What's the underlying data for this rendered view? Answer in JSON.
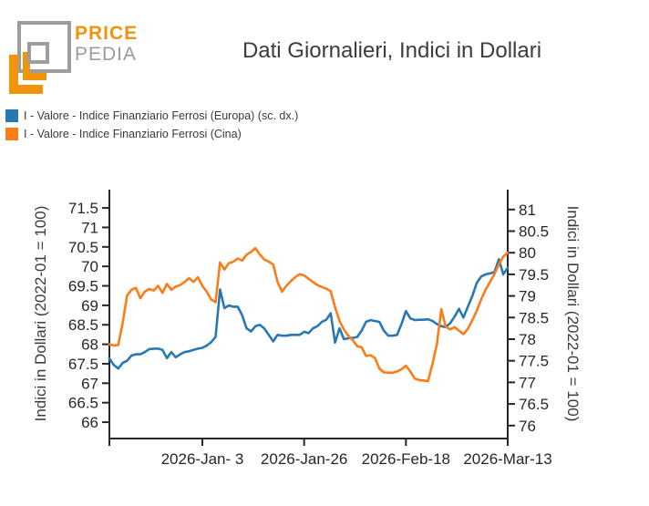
{
  "logo": {
    "brand_top": "PRICE",
    "brand_bottom": "PEDIA"
  },
  "header": {
    "title": "Dati Giornalieri, Indici in Dollari"
  },
  "legend": {
    "items": [
      {
        "label": "I - Valore - Indice Finanziario Ferrosi (Europa) (sc. dx.)",
        "color": "#2878b4"
      },
      {
        "label": "I - Valore - Indice Finanziario Ferrosi (Cina)",
        "color": "#fb7d17"
      }
    ]
  },
  "chart_data": {
    "type": "line",
    "title": "Dati Giornalieri, Indici in Dollari",
    "x_start_date": "2025-12-13",
    "x_frequency": "daily",
    "x_ticks": [
      {
        "index": 0,
        "label": ""
      },
      {
        "index": 21,
        "label": "2026-Jan- 3"
      },
      {
        "index": 44,
        "label": "2026-Jan-26"
      },
      {
        "index": 67,
        "label": "2026-Feb-18"
      },
      {
        "index": 90,
        "label": "2026-Mar-13"
      }
    ],
    "left_axis": {
      "label": "Indici in Dollari (2022-01 = 100)",
      "min": 65.58,
      "max": 71.97,
      "ticks": [
        66,
        66.5,
        67,
        67.5,
        68,
        68.5,
        69,
        69.5,
        70,
        70.5,
        71,
        71.5
      ]
    },
    "right_axis": {
      "label": "Indici in Dollari (2022-01 = 100)",
      "min": 75.7,
      "max": 81.46,
      "ticks": [
        76,
        76.5,
        77,
        77.5,
        78,
        78.5,
        79,
        79.5,
        80,
        80.5,
        81
      ]
    },
    "grid": false,
    "legend_position": "top-left",
    "series": [
      {
        "name": "I - Valore - Indice Finanziario Ferrosi (Europa) (sc. dx.)",
        "axis": "right",
        "color": "#2878b4",
        "values": [
          77.55,
          77.4,
          77.32,
          77.45,
          77.5,
          77.62,
          77.65,
          77.65,
          77.7,
          77.77,
          77.78,
          77.78,
          77.75,
          77.56,
          77.7,
          77.58,
          77.65,
          77.7,
          77.72,
          77.75,
          77.78,
          77.8,
          77.85,
          77.93,
          78.05,
          79.15,
          78.72,
          78.78,
          78.75,
          78.75,
          78.55,
          78.25,
          78.18,
          78.3,
          78.33,
          78.25,
          78.1,
          77.95,
          78.1,
          78.08,
          78.08,
          78.1,
          78.1,
          78.1,
          78.17,
          78.14,
          78.25,
          78.3,
          78.4,
          78.45,
          78.6,
          77.92,
          78.25,
          78.0,
          78.02,
          78.03,
          78.05,
          78.2,
          78.4,
          78.44,
          78.42,
          78.4,
          78.2,
          78.08,
          78.08,
          78.1,
          78.35,
          78.65,
          78.48,
          78.44,
          78.45,
          78.45,
          78.46,
          78.42,
          78.35,
          78.3,
          78.28,
          78.37,
          78.52,
          78.7,
          78.5,
          78.75,
          79.0,
          79.3,
          79.45,
          79.5,
          79.52,
          79.55,
          79.85,
          79.5,
          79.65
        ]
      },
      {
        "name": "I - Valore - Indice Finanziario Ferrosi (Cina)",
        "axis": "left",
        "color": "#fb7d17",
        "values": [
          68.0,
          67.97,
          67.98,
          68.55,
          69.25,
          69.4,
          69.45,
          69.18,
          69.35,
          69.42,
          69.38,
          69.5,
          69.32,
          69.55,
          69.4,
          69.48,
          69.52,
          69.6,
          69.7,
          69.6,
          69.72,
          69.5,
          69.35,
          69.15,
          69.08,
          70.1,
          69.92,
          70.08,
          70.12,
          70.2,
          70.15,
          70.3,
          70.37,
          70.47,
          70.3,
          70.18,
          70.12,
          70.05,
          69.6,
          69.35,
          69.5,
          69.62,
          69.72,
          69.8,
          69.77,
          69.68,
          69.6,
          69.52,
          69.47,
          69.43,
          69.36,
          68.95,
          68.6,
          68.38,
          68.22,
          68.1,
          67.95,
          67.92,
          67.7,
          67.72,
          67.65,
          67.38,
          67.28,
          67.27,
          67.27,
          67.3,
          67.36,
          67.45,
          67.3,
          67.12,
          67.08,
          67.07,
          67.05,
          67.5,
          68.0,
          68.9,
          68.45,
          68.38,
          68.44,
          68.35,
          68.26,
          68.4,
          68.62,
          68.86,
          69.15,
          69.4,
          69.6,
          69.8,
          70.05,
          70.25,
          70.35
        ]
      }
    ]
  }
}
